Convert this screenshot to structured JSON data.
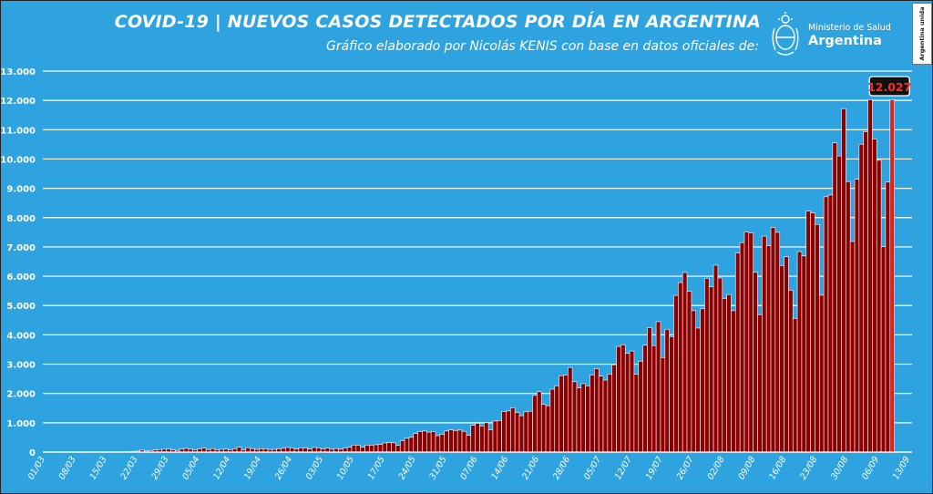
{
  "header": {
    "title": "COVID-19  |  NUEVOS CASOS DETECTADOS POR DÍA EN ARGENTINA",
    "subtitle": "Gráfico elaborado por Nicolás KENIS con base en datos oficiales de:"
  },
  "ministry_logo": {
    "icon": "argentina-coat-of-arms-icon",
    "line1": "Ministerio de Salud",
    "line2": "Argentina"
  },
  "badge": {
    "text": "Argentina unida"
  },
  "colors": {
    "background": "#2ea3e0",
    "bar_fill": "#8b0000",
    "bar_stroke": "#ffffff",
    "highlight_bar": "#e0201b",
    "callout_bg": "#111111",
    "callout_text": "#ff2a2a",
    "text": "#ffffff"
  },
  "chart_data": {
    "type": "bar",
    "title": "COVID-19  |  NUEVOS CASOS DETECTADOS POR DÍA EN ARGENTINA",
    "xlabel": "",
    "ylabel": "",
    "ylim": [
      0,
      13000
    ],
    "grid": true,
    "y_ticks": [
      "0",
      "1.000",
      "2.000",
      "3.000",
      "4.000",
      "5.000",
      "6.000",
      "7.000",
      "8.000",
      "9.000",
      "10.000",
      "11.000",
      "12.000",
      "13.000"
    ],
    "x_ticks": [
      "01/03",
      "08/03",
      "15/03",
      "22/03",
      "29/03",
      "05/04",
      "12/04",
      "19/04",
      "26/04",
      "03/05",
      "10/05",
      "17/05",
      "24/05",
      "31/05",
      "07/06",
      "14/06",
      "21/06",
      "28/06",
      "05/07",
      "12/07",
      "19/07",
      "26/07",
      "02/08",
      "09/08",
      "16/08",
      "23/08",
      "30/08",
      "06/09",
      "13/09"
    ],
    "start_date": "01/03",
    "highlight": {
      "label": "12.027",
      "value": 12027
    },
    "values": [
      0,
      0,
      1,
      0,
      0,
      0,
      0,
      0,
      0,
      0,
      0,
      2,
      3,
      3,
      4,
      6,
      3,
      6,
      8,
      17,
      19,
      31,
      67,
      35,
      52,
      74,
      86,
      96,
      101,
      73,
      55,
      101,
      125,
      98,
      79,
      109,
      134,
      87,
      116,
      81,
      93,
      99,
      81,
      115,
      166,
      75,
      150,
      119,
      90,
      113,
      113,
      88,
      92,
      111,
      126,
      156,
      141,
      105,
      147,
      139,
      101,
      156,
      144,
      111,
      133,
      96,
      119,
      98,
      142,
      163,
      240,
      233,
      165,
      238,
      235,
      249,
      261,
      310,
      320,
      317,
      227,
      393,
      470,
      504,
      634,
      701,
      718,
      679,
      702,
      560,
      604,
      719,
      755,
      737,
      749,
      709,
      571,
      911,
      982,
      893,
      1000,
      762,
      1058,
      1075,
      1386,
      1402,
      1512,
      1349,
      1241,
      1374,
      1393,
      1933,
      2060,
      1625,
      1581,
      2146,
      2263,
      2606,
      2632,
      2886,
      2401,
      2189,
      2335,
      2260,
      2632,
      2845,
      2590,
      2456,
      2662,
      2979,
      3604,
      3663,
      3367,
      3449,
      2657,
      3099,
      3645,
      4250,
      3632,
      4451,
      3223,
      4190,
      3937,
      5344,
      5782,
      6127,
      5488,
      4824,
      4231,
      4890,
      5929,
      5641,
      6377,
      5939,
      5241,
      5376,
      4824,
      6792,
      7147,
      7513,
      7482,
      6134,
      4688,
      7369,
      7043,
      7663,
      7498,
      6365,
      6663,
      5523,
      4561,
      6840,
      6693,
      8225,
      8159,
      7767,
      5352,
      8713,
      8771,
      10550,
      10104,
      11717,
      9230,
      7187,
      9309,
      10504,
      10933,
      12026,
      10684,
      9956,
      7009,
      9212,
      12027
    ]
  }
}
